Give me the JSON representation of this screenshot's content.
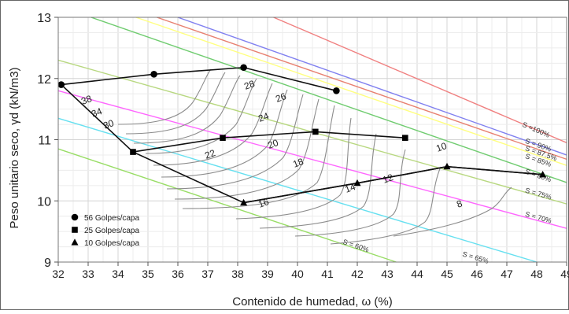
{
  "chart_data": {
    "type": "line",
    "xlabel": "Contenido de humedad, ω (%)",
    "ylabel": "Peso unitario seco, γd (kN/m3)",
    "xlim": [
      32,
      49
    ],
    "ylim": [
      9,
      13
    ],
    "xticks": [
      "32",
      "33",
      "34",
      "35",
      "36",
      "37",
      "38",
      "39",
      "40",
      "41",
      "42",
      "43",
      "44",
      "45",
      "46",
      "47",
      "48",
      "49"
    ],
    "yticks": [
      "9",
      "10",
      "11",
      "12",
      "13"
    ],
    "grid": true,
    "legend_position": "bottom-left",
    "series": [
      {
        "name": "56 Golpes/capa",
        "marker": "circle",
        "x": [
          32.1,
          35.2,
          38.2,
          41.3
        ],
        "y": [
          11.9,
          12.07,
          12.18,
          11.8
        ]
      },
      {
        "name": "25 Golpes/capa",
        "marker": "square",
        "x": [
          34.5,
          37.5,
          40.6,
          43.6
        ],
        "y": [
          10.8,
          11.03,
          11.13,
          11.03
        ]
      },
      {
        "name": "10 Golpes/capa",
        "marker": "triangle",
        "x": [
          38.2,
          42.0,
          45.0,
          48.2
        ],
        "y": [
          9.97,
          10.29,
          10.56,
          10.43
        ]
      }
    ],
    "optimum_line": {
      "x": [
        32.1,
        34.5,
        38.2,
        42.0,
        45.0,
        48.2
      ],
      "y": [
        11.9,
        10.8,
        9.97,
        10.29,
        10.56,
        10.43
      ]
    },
    "saturation_curves": [
      {
        "label": "S =100%",
        "color": "#f08080",
        "x": [
          39.2,
          49
        ],
        "y": [
          13,
          10.95
        ]
      },
      {
        "label": "S = 90%",
        "color": "#8080f0",
        "x": [
          36.0,
          49
        ],
        "y": [
          13,
          10.75
        ]
      },
      {
        "label": "S = 87.5%",
        "color": "#e88070",
        "x": [
          35.3,
          49
        ],
        "y": [
          13,
          10.68
        ]
      },
      {
        "label": "S = 85%",
        "color": "#ffff80",
        "x": [
          34.6,
          49
        ],
        "y": [
          13,
          10.58
        ]
      },
      {
        "label": "S = 80%",
        "color": "#70cc70",
        "x": [
          33.1,
          49
        ],
        "y": [
          13,
          10.3
        ]
      },
      {
        "label": "S = 75%",
        "color": "#b8d880",
        "x": [
          32,
          49
        ],
        "y": [
          12.3,
          9.95
        ]
      },
      {
        "label": "S = 70%",
        "color": "#ff66ff",
        "x": [
          32,
          49
        ],
        "y": [
          11.8,
          9.55
        ]
      },
      {
        "label": "S = 65%",
        "color": "#66e0f0",
        "x": [
          32,
          48.0
        ],
        "y": [
          11.35,
          9
        ]
      },
      {
        "label": "S = 60%",
        "color": "#99dd66",
        "x": [
          32,
          43.3
        ],
        "y": [
          10.85,
          9
        ]
      }
    ],
    "contour_labels": [
      "38",
      "34",
      "30",
      "28",
      "26",
      "24",
      "22",
      "20",
      "18",
      "16",
      "14",
      "12",
      "10",
      "8"
    ]
  }
}
